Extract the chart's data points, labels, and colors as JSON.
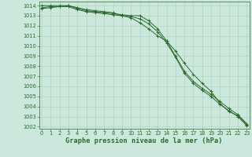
{
  "x": [
    0,
    1,
    2,
    3,
    4,
    5,
    6,
    7,
    8,
    9,
    10,
    11,
    12,
    13,
    14,
    15,
    16,
    17,
    18,
    19,
    20,
    21,
    22,
    23
  ],
  "line1": [
    1013.8,
    1013.9,
    1013.9,
    1014.0,
    1013.7,
    1013.5,
    1013.4,
    1013.3,
    1013.2,
    1013.1,
    1013.0,
    1013.0,
    1012.5,
    1011.7,
    1010.5,
    1009.5,
    1008.3,
    1007.2,
    1006.3,
    1005.5,
    1004.3,
    1003.5,
    1003.1,
    1002.2
  ],
  "line2": [
    1014.0,
    1014.0,
    1014.0,
    1014.0,
    1013.8,
    1013.6,
    1013.5,
    1013.4,
    1013.3,
    1013.0,
    1012.8,
    1012.3,
    1011.7,
    1011.0,
    1010.5,
    1009.0,
    1007.5,
    1006.5,
    1005.8,
    1005.2,
    1004.5,
    1003.8,
    1003.2,
    1002.3
  ],
  "line3": [
    1013.7,
    1013.8,
    1013.9,
    1013.9,
    1013.6,
    1013.4,
    1013.3,
    1013.2,
    1013.1,
    1013.0,
    1012.9,
    1012.7,
    1012.2,
    1011.4,
    1010.3,
    1008.9,
    1007.3,
    1006.3,
    1005.6,
    1005.0,
    1004.2,
    1003.6,
    1003.0,
    1002.1
  ],
  "line_color": "#2d6a2d",
  "bg_color": "#cce8dc",
  "grid_color": "#aacfbe",
  "title": "Graphe pression niveau de la mer (hPa)",
  "ylim": [
    1001.8,
    1014.4
  ],
  "xlim": [
    -0.3,
    23.3
  ],
  "yticks": [
    1002,
    1003,
    1004,
    1005,
    1006,
    1007,
    1008,
    1009,
    1010,
    1011,
    1012,
    1013,
    1014
  ],
  "xticks": [
    0,
    1,
    2,
    3,
    4,
    5,
    6,
    7,
    8,
    9,
    10,
    11,
    12,
    13,
    14,
    15,
    16,
    17,
    18,
    19,
    20,
    21,
    22,
    23
  ],
  "tick_fontsize": 4.8,
  "title_fontsize": 6.2,
  "marker": "+",
  "markersize": 3.0,
  "linewidth": 0.7
}
